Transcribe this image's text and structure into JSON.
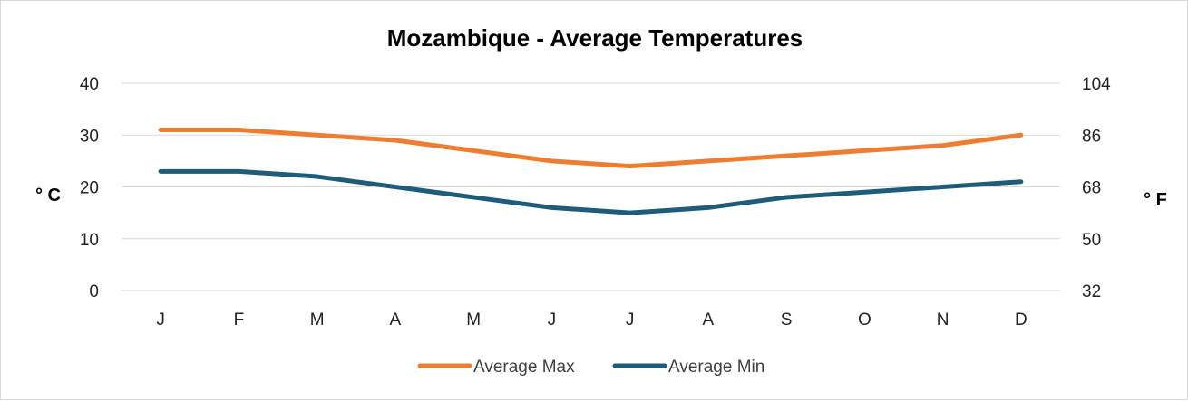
{
  "chart_data": {
    "type": "line",
    "title": "Mozambique - Average Temperatures",
    "categories": [
      "J",
      "F",
      "M",
      "A",
      "M",
      "J",
      "J",
      "A",
      "S",
      "O",
      "N",
      "D"
    ],
    "series": [
      {
        "name": "Average Max",
        "color": "#ED7D31",
        "values": [
          31,
          31,
          30,
          29,
          27,
          25,
          24,
          25,
          26,
          27,
          28,
          30
        ]
      },
      {
        "name": "Average Min",
        "color": "#1F5C7A",
        "values": [
          23,
          23,
          22,
          20,
          18,
          16,
          15,
          16,
          18,
          19,
          20,
          21
        ]
      }
    ],
    "ylabel_left": "° C",
    "ylabel_right": "° F",
    "ylim": [
      0,
      40
    ],
    "yticks_left": [
      "0",
      "10",
      "20",
      "30",
      "40"
    ],
    "yticks_right": [
      "32",
      "50",
      "68",
      "86",
      "104"
    ],
    "grid": true,
    "legend_position": "bottom"
  }
}
